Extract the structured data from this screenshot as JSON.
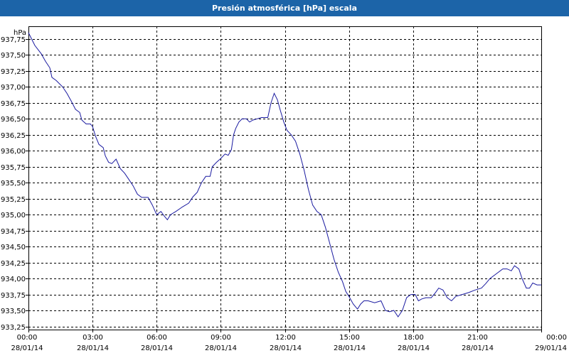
{
  "chart_data": {
    "type": "line",
    "title": "Presión atmosférica [hPa] escala",
    "y_unit": "hPa",
    "ylim": [
      933.2,
      937.95
    ],
    "y_ticks": [
      {
        "value": 937.75,
        "label": "937,75"
      },
      {
        "value": 937.5,
        "label": "937,50"
      },
      {
        "value": 937.25,
        "label": "937,25"
      },
      {
        "value": 937.0,
        "label": "937,00"
      },
      {
        "value": 936.75,
        "label": "936,75"
      },
      {
        "value": 936.5,
        "label": "936,50"
      },
      {
        "value": 936.25,
        "label": "936,25"
      },
      {
        "value": 936.0,
        "label": "936,00"
      },
      {
        "value": 935.75,
        "label": "935,75"
      },
      {
        "value": 935.5,
        "label": "935,50"
      },
      {
        "value": 935.25,
        "label": "935,25"
      },
      {
        "value": 935.0,
        "label": "935,00"
      },
      {
        "value": 934.75,
        "label": "934,75"
      },
      {
        "value": 934.5,
        "label": "934,50"
      },
      {
        "value": 934.25,
        "label": "934,25"
      },
      {
        "value": 934.0,
        "label": "934,00"
      },
      {
        "value": 933.75,
        "label": "933,75"
      },
      {
        "value": 933.5,
        "label": "933,50"
      },
      {
        "value": 933.25,
        "label": "933,25"
      }
    ],
    "x_ticks": [
      {
        "time": "00:00",
        "date": "28/01/14"
      },
      {
        "time": "03:00",
        "date": "28/01/14"
      },
      {
        "time": "06:00",
        "date": "28/01/14"
      },
      {
        "time": "09:00",
        "date": "28/01/14"
      },
      {
        "time": "12:00",
        "date": "28/01/14"
      },
      {
        "time": "15:00",
        "date": "28/01/14"
      },
      {
        "time": "18:00",
        "date": "28/01/14"
      },
      {
        "time": "21:00",
        "date": "28/01/14"
      },
      {
        "time": "00:00",
        "date": "29/01/14"
      }
    ],
    "xlim_hours": [
      0,
      24
    ],
    "grid": true,
    "line_color": "#1a1aa0",
    "series": [
      {
        "points": [
          [
            0.0,
            937.85
          ],
          [
            0.3,
            937.65
          ],
          [
            0.6,
            937.52
          ],
          [
            0.8,
            937.4
          ],
          [
            1.0,
            937.3
          ],
          [
            1.1,
            937.15
          ],
          [
            1.3,
            937.1
          ],
          [
            1.6,
            937.0
          ],
          [
            1.8,
            936.9
          ],
          [
            2.0,
            936.78
          ],
          [
            2.2,
            936.65
          ],
          [
            2.4,
            936.6
          ],
          [
            2.5,
            936.48
          ],
          [
            2.7,
            936.42
          ],
          [
            2.9,
            936.42
          ],
          [
            3.0,
            936.38
          ],
          [
            3.15,
            936.22
          ],
          [
            3.3,
            936.1
          ],
          [
            3.5,
            936.05
          ],
          [
            3.6,
            935.92
          ],
          [
            3.75,
            935.82
          ],
          [
            3.9,
            935.8
          ],
          [
            4.1,
            935.87
          ],
          [
            4.3,
            935.72
          ],
          [
            4.5,
            935.65
          ],
          [
            4.7,
            935.55
          ],
          [
            4.9,
            935.45
          ],
          [
            5.1,
            935.32
          ],
          [
            5.3,
            935.27
          ],
          [
            5.6,
            935.27
          ],
          [
            5.8,
            935.15
          ],
          [
            6.0,
            935.0
          ],
          [
            6.2,
            935.05
          ],
          [
            6.35,
            934.98
          ],
          [
            6.5,
            934.92
          ],
          [
            6.65,
            935.0
          ],
          [
            6.9,
            935.05
          ],
          [
            7.2,
            935.12
          ],
          [
            7.5,
            935.18
          ],
          [
            7.7,
            935.28
          ],
          [
            7.9,
            935.35
          ],
          [
            8.1,
            935.5
          ],
          [
            8.3,
            935.6
          ],
          [
            8.5,
            935.6
          ],
          [
            8.6,
            935.75
          ],
          [
            8.8,
            935.82
          ],
          [
            9.0,
            935.88
          ],
          [
            9.2,
            935.95
          ],
          [
            9.35,
            935.93
          ],
          [
            9.5,
            936.02
          ],
          [
            9.6,
            936.25
          ],
          [
            9.7,
            936.35
          ],
          [
            9.85,
            936.45
          ],
          [
            10.0,
            936.5
          ],
          [
            10.2,
            936.5
          ],
          [
            10.35,
            936.45
          ],
          [
            10.5,
            936.48
          ],
          [
            10.7,
            936.5
          ],
          [
            10.9,
            936.52
          ],
          [
            11.2,
            936.52
          ],
          [
            11.35,
            936.75
          ],
          [
            11.5,
            936.9
          ],
          [
            11.65,
            936.8
          ],
          [
            11.8,
            936.62
          ],
          [
            11.95,
            936.45
          ],
          [
            12.1,
            936.32
          ],
          [
            12.3,
            936.25
          ],
          [
            12.5,
            936.15
          ],
          [
            12.7,
            935.95
          ],
          [
            12.9,
            935.7
          ],
          [
            13.1,
            935.4
          ],
          [
            13.3,
            935.15
          ],
          [
            13.5,
            935.05
          ],
          [
            13.7,
            935.0
          ],
          [
            13.9,
            934.8
          ],
          [
            14.1,
            934.55
          ],
          [
            14.3,
            934.3
          ],
          [
            14.5,
            934.1
          ],
          [
            14.7,
            933.95
          ],
          [
            14.85,
            933.8
          ],
          [
            15.0,
            933.72
          ],
          [
            15.2,
            933.6
          ],
          [
            15.4,
            933.52
          ],
          [
            15.55,
            933.6
          ],
          [
            15.7,
            933.65
          ],
          [
            15.9,
            933.65
          ],
          [
            16.2,
            933.62
          ],
          [
            16.5,
            933.65
          ],
          [
            16.7,
            933.5
          ],
          [
            16.9,
            933.48
          ],
          [
            17.1,
            933.5
          ],
          [
            17.3,
            933.4
          ],
          [
            17.5,
            933.5
          ],
          [
            17.7,
            933.7
          ],
          [
            17.9,
            933.75
          ],
          [
            18.1,
            933.75
          ],
          [
            18.25,
            933.65
          ],
          [
            18.4,
            933.68
          ],
          [
            18.6,
            933.7
          ],
          [
            18.85,
            933.7
          ],
          [
            19.05,
            933.78
          ],
          [
            19.2,
            933.85
          ],
          [
            19.4,
            933.82
          ],
          [
            19.6,
            933.7
          ],
          [
            19.8,
            933.65
          ],
          [
            20.0,
            933.72
          ],
          [
            20.3,
            933.75
          ],
          [
            20.6,
            933.78
          ],
          [
            20.9,
            933.82
          ],
          [
            21.2,
            933.85
          ],
          [
            21.4,
            933.92
          ],
          [
            21.6,
            934.0
          ],
          [
            21.8,
            934.05
          ],
          [
            22.0,
            934.1
          ],
          [
            22.2,
            934.15
          ],
          [
            22.4,
            934.15
          ],
          [
            22.6,
            934.12
          ],
          [
            22.75,
            934.2
          ],
          [
            22.95,
            934.15
          ],
          [
            23.1,
            934.0
          ],
          [
            23.3,
            933.85
          ],
          [
            23.45,
            933.85
          ],
          [
            23.6,
            933.93
          ],
          [
            23.8,
            933.9
          ],
          [
            24.0,
            933.9
          ]
        ]
      }
    ]
  }
}
